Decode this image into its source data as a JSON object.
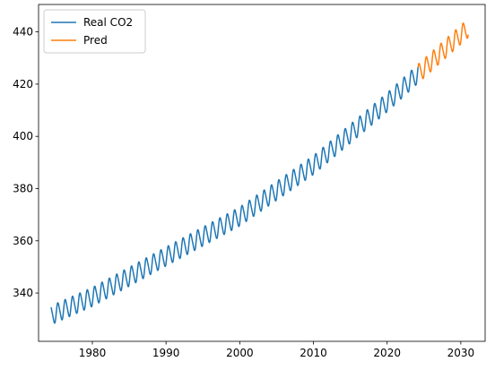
{
  "chart_data": {
    "type": "line",
    "title": "",
    "xlabel": "",
    "ylabel": "",
    "xlim": [
      1972.7,
      2033.3
    ],
    "ylim": [
      321.5,
      450.5
    ],
    "xticks": [
      1980,
      1990,
      2000,
      2010,
      2020,
      2030
    ],
    "yticks": [
      340,
      360,
      380,
      400,
      420,
      440
    ],
    "grid": false,
    "legend": {
      "placement": "top-left"
    },
    "series": [
      {
        "name": "Real CO2",
        "color": "#1f77b4",
        "x_range": [
          1974.4,
          2024.2
        ],
        "step": 0.02,
        "trend_points": [
          [
            1974.4,
            331.5
          ],
          [
            1980,
            338.5
          ],
          [
            1990,
            354.0
          ],
          [
            2000,
            369.3
          ],
          [
            2010,
            389.0
          ],
          [
            2020,
            413.0
          ],
          [
            2024.2,
            424.0
          ]
        ],
        "seasonal_amplitude": 3.5
      },
      {
        "name": "Pred",
        "color": "#ff7f0e",
        "x_range": [
          2024.2,
          2031.0
        ],
        "step": 0.02,
        "trend_points": [
          [
            2024.2,
            424.0
          ],
          [
            2031.0,
            441.5
          ]
        ],
        "seasonal_amplitude": 3.5
      }
    ]
  }
}
